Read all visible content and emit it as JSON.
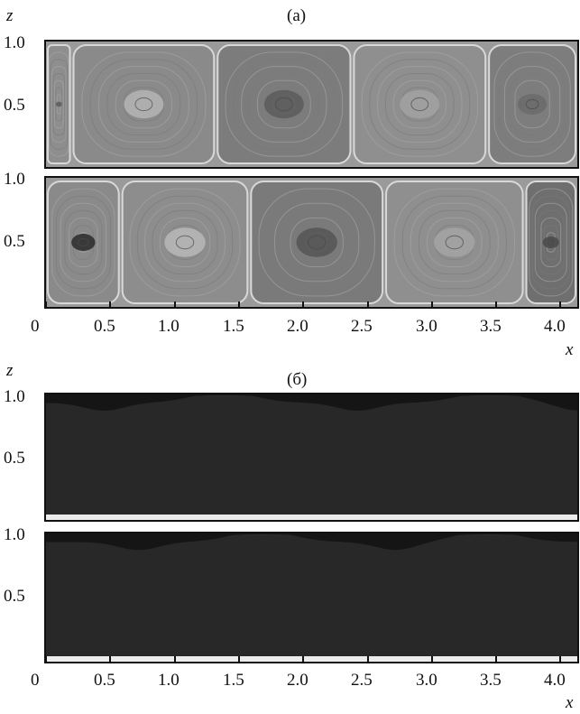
{
  "figure": {
    "part_a": {
      "label": "(а)",
      "axis_z_label": "z",
      "axis_x_label": "x",
      "z_ticks": [
        "1.0",
        "0.5"
      ],
      "x_ticks": [
        "0",
        "0.5",
        "1.0",
        "1.5",
        "2.0",
        "2.5",
        "3.0",
        "3.5",
        "4.0"
      ],
      "x_tick_values": [
        0,
        0.5,
        1.0,
        1.5,
        2.0,
        2.5,
        3.0,
        3.5,
        4.0
      ],
      "x_range": [
        0,
        4.13
      ],
      "z_range": [
        0,
        1.0
      ],
      "top_panel_cells": [
        {
          "x0": 0.0,
          "x1": 0.2,
          "shade": "#8e8e8e",
          "eye": "#6e6e6e"
        },
        {
          "x0": 0.2,
          "x1": 1.32,
          "shade": "#8a8a8a",
          "eye": "#b4b4b4"
        },
        {
          "x0": 1.32,
          "x1": 2.38,
          "shade": "#7c7c7c",
          "eye": "#5c5c5c"
        },
        {
          "x0": 2.38,
          "x1": 3.43,
          "shade": "#8f8f8f",
          "eye": "#a2a2a2"
        },
        {
          "x0": 3.43,
          "x1": 4.13,
          "shade": "#7d7d7d",
          "eye": "#6a6a6a"
        }
      ],
      "bottom_panel_cells": [
        {
          "x0": 0.0,
          "x1": 0.58,
          "shade": "#8a8a8a",
          "eye": "#2a2a2a"
        },
        {
          "x0": 0.58,
          "x1": 1.58,
          "shade": "#8d8d8d",
          "eye": "#b8b8b8"
        },
        {
          "x0": 1.58,
          "x1": 2.63,
          "shade": "#7a7a7a",
          "eye": "#555555"
        },
        {
          "x0": 2.63,
          "x1": 3.72,
          "shade": "#8f8f8f",
          "eye": "#a4a4a4"
        },
        {
          "x0": 3.72,
          "x1": 4.13,
          "shade": "#6f6f6f",
          "eye": "#4a4a4a"
        }
      ]
    },
    "part_b": {
      "label": "(б)",
      "axis_z_label": "z",
      "axis_x_label": "x",
      "z_ticks": [
        "1.0",
        "0.5"
      ],
      "x_ticks": [
        "0",
        "0.5",
        "1.0",
        "1.5",
        "2.0",
        "2.5",
        "3.0",
        "3.5",
        "4.0"
      ],
      "x_tick_values": [
        0,
        0.5,
        1.0,
        1.5,
        2.0,
        2.5,
        3.0,
        3.5,
        4.0
      ],
      "x_range": [
        0,
        4.13
      ],
      "z_range": [
        0,
        1.0
      ],
      "contour_levels": 14,
      "top_panel_plumes": {
        "hot_x": [
          1.38,
          3.45
        ],
        "cold_x": [
          0.45,
          2.42,
          4.13
        ]
      },
      "bottom_panel_plumes": {
        "hot_x": [
          1.68,
          3.43
        ],
        "cold_x": [
          0.72,
          2.72
        ]
      }
    }
  }
}
